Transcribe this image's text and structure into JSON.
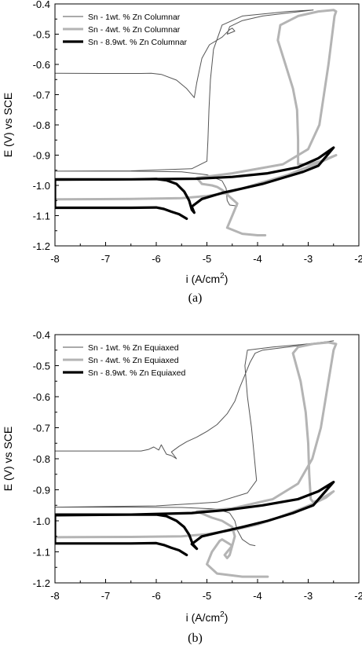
{
  "chart_data": [
    {
      "type": "line",
      "caption": "(a)",
      "xlabel": "i (A/cm",
      "xlabel_sup": "2",
      "xlabel_end": ")",
      "ylabel": "E (V) vs SCE",
      "xlim": [
        -8,
        -2
      ],
      "ylim": [
        -1.2,
        -0.4
      ],
      "xticks": [
        "-8",
        "-7",
        "-6",
        "-5",
        "-4",
        "-3",
        "-2"
      ],
      "yticks": [
        "-0.4",
        "-0.5",
        "-0.6",
        "-0.7",
        "-0.8",
        "-0.9",
        "-1.0",
        "-1.1",
        "-1.2"
      ],
      "legend_position": "top-left",
      "series": [
        {
          "name": "Sn - 1wt. % Zn Columnar",
          "color": "#555555",
          "width": "thin",
          "points": [
            [
              -8,
              -0.629
            ],
            [
              -7,
              -0.63
            ],
            [
              -6.3,
              -0.63
            ],
            [
              -6.1,
              -0.629
            ],
            [
              -5.9,
              -0.633
            ],
            [
              -5.6,
              -0.652
            ],
            [
              -5.4,
              -0.68
            ],
            [
              -5.25,
              -0.71
            ],
            [
              -5.25,
              -0.71
            ],
            [
              -5.2,
              -0.66
            ],
            [
              -5.15,
              -0.62
            ],
            [
              -5.1,
              -0.58
            ],
            [
              -4.95,
              -0.535
            ],
            [
              -4.7,
              -0.51
            ],
            [
              -4.55,
              -0.485
            ],
            [
              -4.5,
              -0.48
            ],
            [
              -4.45,
              -0.49
            ],
            [
              -4.6,
              -0.5
            ],
            [
              -4.55,
              -0.475
            ],
            [
              -4.3,
              -0.455
            ],
            [
              -3.9,
              -0.44
            ],
            [
              -3.4,
              -0.43
            ],
            [
              -2.9,
              -0.42
            ],
            [
              -2.9,
              -0.42
            ],
            [
              -3.4,
              -0.425
            ],
            [
              -4.3,
              -0.44
            ],
            [
              -4.7,
              -0.47
            ],
            [
              -4.87,
              -0.55
            ],
            [
              -4.93,
              -0.65
            ],
            [
              -4.96,
              -0.75
            ],
            [
              -4.98,
              -0.85
            ],
            [
              -5.0,
              -0.92
            ],
            [
              -5.3,
              -0.945
            ],
            [
              -6.5,
              -0.952
            ],
            [
              -8,
              -0.953
            ],
            [
              -8,
              -0.953
            ],
            [
              -6.5,
              -0.953
            ],
            [
              -5.5,
              -0.955
            ],
            [
              -5.0,
              -0.965
            ],
            [
              -4.7,
              -0.985
            ],
            [
              -4.62,
              -1.01
            ],
            [
              -4.6,
              -1.05
            ],
            [
              -4.55,
              -1.065
            ],
            [
              -4.4,
              -1.068
            ]
          ]
        },
        {
          "name": "Sn - 4wt. % Zn Columnar",
          "color": "#b4b4b4",
          "width": "medium",
          "points": [
            [
              -8,
              -1.046
            ],
            [
              -6.5,
              -1.045
            ],
            [
              -5.5,
              -1.042
            ],
            [
              -5.0,
              -1.035
            ],
            [
              -4.6,
              -1.025
            ],
            [
              -4.2,
              -1.005
            ],
            [
              -3.8,
              -0.985
            ],
            [
              -3.4,
              -0.965
            ],
            [
              -3.1,
              -0.945
            ],
            [
              -2.85,
              -0.93
            ],
            [
              -2.65,
              -0.915
            ],
            [
              -2.45,
              -0.9
            ],
            [
              -2.45,
              -0.9
            ],
            [
              -2.75,
              -0.92
            ],
            [
              -3.0,
              -0.93
            ],
            [
              -3.2,
              -0.93
            ],
            [
              -3.2,
              -0.85
            ],
            [
              -3.22,
              -0.75
            ],
            [
              -3.3,
              -0.68
            ],
            [
              -3.45,
              -0.6
            ],
            [
              -3.6,
              -0.52
            ],
            [
              -3.55,
              -0.47
            ],
            [
              -3.2,
              -0.44
            ],
            [
              -2.8,
              -0.425
            ],
            [
              -2.5,
              -0.42
            ],
            [
              -2.45,
              -0.425
            ],
            [
              -2.48,
              -0.44
            ],
            [
              -2.6,
              -0.6
            ],
            [
              -2.78,
              -0.8
            ],
            [
              -3.0,
              -0.88
            ],
            [
              -3.5,
              -0.93
            ],
            [
              -4.5,
              -0.96
            ],
            [
              -5.2,
              -0.975
            ],
            [
              -5.1,
              -0.995
            ],
            [
              -4.9,
              -1.0
            ],
            [
              -4.8,
              -1.005
            ],
            [
              -4.7,
              -1.015
            ],
            [
              -4.6,
              -1.03
            ],
            [
              -4.4,
              -1.06
            ],
            [
              -4.5,
              -1.1
            ],
            [
              -4.6,
              -1.14
            ],
            [
              -4.3,
              -1.16
            ],
            [
              -4.0,
              -1.165
            ],
            [
              -3.85,
              -1.165
            ]
          ]
        },
        {
          "name": "Sn - 8.9wt. % Zn Columnar",
          "color": "#000000",
          "width": "thick",
          "points": [
            [
              -8,
              -0.98
            ],
            [
              -6.5,
              -0.98
            ],
            [
              -6.0,
              -0.979
            ],
            [
              -5.8,
              -0.983
            ],
            [
              -5.6,
              -0.995
            ],
            [
              -5.45,
              -1.02
            ],
            [
              -5.35,
              -1.05
            ],
            [
              -5.3,
              -1.08
            ],
            [
              -5.25,
              -1.09
            ],
            [
              -5.25,
              -1.09
            ],
            [
              -5.3,
              -1.07
            ],
            [
              -5.1,
              -1.045
            ],
            [
              -4.7,
              -1.025
            ],
            [
              -4.3,
              -1.01
            ],
            [
              -3.9,
              -0.995
            ],
            [
              -3.5,
              -0.975
            ],
            [
              -3.1,
              -0.955
            ],
            [
              -2.8,
              -0.935
            ],
            [
              -2.5,
              -0.875
            ],
            [
              -2.5,
              -0.875
            ],
            [
              -2.8,
              -0.91
            ],
            [
              -3.2,
              -0.94
            ],
            [
              -3.8,
              -0.96
            ],
            [
              -4.5,
              -0.972
            ],
            [
              -5.2,
              -0.978
            ],
            [
              -6.5,
              -0.98
            ],
            [
              -8,
              -0.981
            ],
            [
              -8,
              -1.074
            ],
            [
              -6.5,
              -1.074
            ],
            [
              -6.0,
              -1.073
            ],
            [
              -5.85,
              -1.078
            ],
            [
              -5.7,
              -1.087
            ],
            [
              -5.55,
              -1.095
            ],
            [
              -5.4,
              -1.11
            ]
          ]
        }
      ]
    },
    {
      "type": "line",
      "caption": "(b)",
      "xlabel": "i (A/cm",
      "xlabel_sup": "2",
      "xlabel_end": ")",
      "ylabel": "E (V) vs SCE",
      "xlim": [
        -8,
        -2
      ],
      "ylim": [
        -1.2,
        -0.4
      ],
      "xticks": [
        "-8",
        "-7",
        "-6",
        "-5",
        "-4",
        "-3",
        "-2"
      ],
      "yticks": [
        "-0.4",
        "-0.5",
        "-0.6",
        "-0.7",
        "-0.8",
        "-0.9",
        "-1.0",
        "-1.1",
        "-1.2"
      ],
      "legend_position": "top-left",
      "series": [
        {
          "name": "Sn - 1wt. % Zn Equiaxed",
          "color": "#555555",
          "width": "thin",
          "points": [
            [
              -8,
              -0.775
            ],
            [
              -7,
              -0.775
            ],
            [
              -6.3,
              -0.775
            ],
            [
              -6.15,
              -0.77
            ],
            [
              -6.05,
              -0.762
            ],
            [
              -5.95,
              -0.772
            ],
            [
              -5.9,
              -0.755
            ],
            [
              -5.8,
              -0.785
            ],
            [
              -5.7,
              -0.79
            ],
            [
              -5.6,
              -0.8
            ],
            [
              -5.6,
              -0.8
            ],
            [
              -5.7,
              -0.778
            ],
            [
              -5.55,
              -0.76
            ],
            [
              -5.4,
              -0.745
            ],
            [
              -5.2,
              -0.73
            ],
            [
              -5.0,
              -0.712
            ],
            [
              -4.8,
              -0.69
            ],
            [
              -4.6,
              -0.655
            ],
            [
              -4.45,
              -0.615
            ],
            [
              -4.35,
              -0.57
            ],
            [
              -4.25,
              -0.53
            ],
            [
              -4.15,
              -0.49
            ],
            [
              -4.05,
              -0.46
            ],
            [
              -3.9,
              -0.45
            ],
            [
              -3.4,
              -0.44
            ],
            [
              -2.9,
              -0.43
            ],
            [
              -2.5,
              -0.42
            ],
            [
              -2.5,
              -0.42
            ],
            [
              -3.0,
              -0.43
            ],
            [
              -3.7,
              -0.44
            ],
            [
              -4.2,
              -0.45
            ],
            [
              -4.25,
              -0.5
            ],
            [
              -4.2,
              -0.6
            ],
            [
              -4.12,
              -0.7
            ],
            [
              -4.06,
              -0.8
            ],
            [
              -4.02,
              -0.87
            ],
            [
              -4.2,
              -0.91
            ],
            [
              -4.8,
              -0.94
            ],
            [
              -6.0,
              -0.952
            ],
            [
              -8,
              -0.956
            ],
            [
              -8,
              -0.956
            ],
            [
              -6.5,
              -0.956
            ],
            [
              -5.5,
              -0.957
            ],
            [
              -4.8,
              -0.962
            ],
            [
              -4.55,
              -0.975
            ],
            [
              -4.45,
              -1.0
            ],
            [
              -4.4,
              -1.03
            ],
            [
              -4.3,
              -1.06
            ],
            [
              -4.15,
              -1.077
            ],
            [
              -4.05,
              -1.08
            ]
          ]
        },
        {
          "name": "Sn - 4wt. % Zn Equiaxed",
          "color": "#b4b4b4",
          "width": "medium",
          "points": [
            [
              -8,
              -1.053
            ],
            [
              -6.5,
              -1.052
            ],
            [
              -5.5,
              -1.05
            ],
            [
              -5.0,
              -1.043
            ],
            [
              -4.5,
              -1.03
            ],
            [
              -4.0,
              -1.012
            ],
            [
              -3.6,
              -0.99
            ],
            [
              -3.2,
              -0.965
            ],
            [
              -2.9,
              -0.945
            ],
            [
              -2.65,
              -0.925
            ],
            [
              -2.5,
              -0.905
            ],
            [
              -2.5,
              -0.905
            ],
            [
              -2.75,
              -0.93
            ],
            [
              -2.9,
              -0.94
            ],
            [
              -2.95,
              -0.93
            ],
            [
              -2.98,
              -0.85
            ],
            [
              -3.0,
              -0.75
            ],
            [
              -3.05,
              -0.65
            ],
            [
              -3.15,
              -0.55
            ],
            [
              -3.3,
              -0.46
            ],
            [
              -3.2,
              -0.44
            ],
            [
              -2.9,
              -0.43
            ],
            [
              -2.6,
              -0.425
            ],
            [
              -2.45,
              -0.43
            ],
            [
              -2.5,
              -0.45
            ],
            [
              -2.6,
              -0.55
            ],
            [
              -2.75,
              -0.7
            ],
            [
              -2.92,
              -0.8
            ],
            [
              -3.2,
              -0.88
            ],
            [
              -3.7,
              -0.93
            ],
            [
              -4.5,
              -0.96
            ],
            [
              -5.2,
              -0.97
            ],
            [
              -4.9,
              -0.99
            ],
            [
              -4.7,
              -1.0
            ],
            [
              -4.5,
              -1.02
            ],
            [
              -4.45,
              -1.05
            ],
            [
              -4.5,
              -1.08
            ],
            [
              -4.65,
              -1.11
            ],
            [
              -4.6,
              -1.12
            ],
            [
              -4.55,
              -1.11
            ],
            [
              -4.5,
              -1.08
            ],
            [
              -4.7,
              -1.06
            ],
            [
              -4.75,
              -1.065
            ],
            [
              -4.9,
              -1.1
            ],
            [
              -5.0,
              -1.14
            ],
            [
              -4.8,
              -1.17
            ],
            [
              -4.3,
              -1.18
            ],
            [
              -3.8,
              -1.18
            ]
          ]
        },
        {
          "name": "Sn - 8.9wt. % Zn Equiaxed",
          "color": "#000000",
          "width": "thick",
          "points": [
            [
              -8,
              -0.98
            ],
            [
              -6.5,
              -0.98
            ],
            [
              -6.0,
              -0.98
            ],
            [
              -5.8,
              -0.985
            ],
            [
              -5.6,
              -1.0
            ],
            [
              -5.45,
              -1.02
            ],
            [
              -5.35,
              -1.045
            ],
            [
              -5.28,
              -1.075
            ],
            [
              -5.2,
              -1.09
            ],
            [
              -5.2,
              -1.09
            ],
            [
              -5.3,
              -1.075
            ],
            [
              -5.1,
              -1.05
            ],
            [
              -4.7,
              -1.035
            ],
            [
              -4.3,
              -1.02
            ],
            [
              -3.8,
              -1.0
            ],
            [
              -3.3,
              -0.975
            ],
            [
              -2.9,
              -0.95
            ],
            [
              -2.5,
              -0.875
            ],
            [
              -2.5,
              -0.875
            ],
            [
              -2.8,
              -0.905
            ],
            [
              -3.2,
              -0.93
            ],
            [
              -3.9,
              -0.95
            ],
            [
              -4.6,
              -0.965
            ],
            [
              -5.3,
              -0.975
            ],
            [
              -6.5,
              -0.98
            ],
            [
              -8,
              -0.982
            ],
            [
              -8,
              -1.073
            ],
            [
              -6.5,
              -1.073
            ],
            [
              -6.0,
              -1.072
            ],
            [
              -5.85,
              -1.078
            ],
            [
              -5.7,
              -1.087
            ],
            [
              -5.55,
              -1.095
            ],
            [
              -5.4,
              -1.11
            ]
          ]
        }
      ]
    }
  ]
}
